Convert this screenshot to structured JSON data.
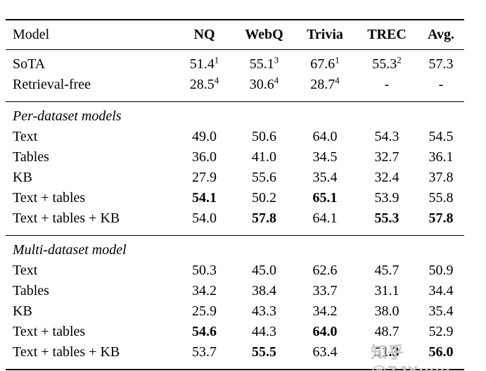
{
  "colors": {
    "text": "#000000",
    "rule": "#000000",
    "watermark": "#c9c9c9",
    "background": "#ffffff"
  },
  "watermark": {
    "text": "知乎 @ZJXuuu"
  },
  "table": {
    "columns": [
      "Model",
      "NQ",
      "WebQ",
      "Trivia",
      "TREC",
      "Avg."
    ],
    "groups": [
      {
        "header": null,
        "rows": [
          {
            "label": "SoTA",
            "cells": [
              {
                "v": "51.4",
                "sup": "1"
              },
              {
                "v": "55.1",
                "sup": "3"
              },
              {
                "v": "67.6",
                "sup": "1"
              },
              {
                "v": "55.3",
                "sup": "2"
              },
              {
                "v": "57.3"
              }
            ]
          },
          {
            "label": "Retrieval-free",
            "cells": [
              {
                "v": "28.5",
                "sup": "4"
              },
              {
                "v": "30.6",
                "sup": "4"
              },
              {
                "v": "28.7",
                "sup": "4"
              },
              {
                "v": "-"
              },
              {
                "v": "-"
              }
            ]
          }
        ]
      },
      {
        "header": "Per-dataset models",
        "rows": [
          {
            "label": "Text",
            "cells": [
              {
                "v": "49.0"
              },
              {
                "v": "50.6"
              },
              {
                "v": "64.0"
              },
              {
                "v": "54.3"
              },
              {
                "v": "54.5"
              }
            ]
          },
          {
            "label": "Tables",
            "cells": [
              {
                "v": "36.0"
              },
              {
                "v": "41.0"
              },
              {
                "v": "34.5"
              },
              {
                "v": "32.7"
              },
              {
                "v": "36.1"
              }
            ]
          },
          {
            "label": "KB",
            "cells": [
              {
                "v": "27.9"
              },
              {
                "v": "55.6"
              },
              {
                "v": "35.4"
              },
              {
                "v": "32.4"
              },
              {
                "v": "37.8"
              }
            ]
          },
          {
            "label": "Text + tables",
            "cells": [
              {
                "v": "54.1",
                "bold": true
              },
              {
                "v": "50.2"
              },
              {
                "v": "65.1",
                "bold": true
              },
              {
                "v": "53.9"
              },
              {
                "v": "55.8"
              }
            ]
          },
          {
            "label": "Text + tables + KB",
            "cells": [
              {
                "v": "54.0"
              },
              {
                "v": "57.8",
                "bold": true
              },
              {
                "v": "64.1"
              },
              {
                "v": "55.3",
                "bold": true
              },
              {
                "v": "57.8",
                "bold": true
              }
            ]
          }
        ]
      },
      {
        "header": "Multi-dataset model",
        "rows": [
          {
            "label": "Text",
            "cells": [
              {
                "v": "50.3"
              },
              {
                "v": "45.0"
              },
              {
                "v": "62.6"
              },
              {
                "v": "45.7"
              },
              {
                "v": "50.9"
              }
            ]
          },
          {
            "label": "Tables",
            "cells": [
              {
                "v": "34.2"
              },
              {
                "v": "38.4"
              },
              {
                "v": "33.7"
              },
              {
                "v": "31.1"
              },
              {
                "v": "34.4"
              }
            ]
          },
          {
            "label": "KB",
            "cells": [
              {
                "v": "25.9"
              },
              {
                "v": "43.3"
              },
              {
                "v": "34.2"
              },
              {
                "v": "38.0"
              },
              {
                "v": "35.4"
              }
            ]
          },
          {
            "label": "Text + tables",
            "cells": [
              {
                "v": "54.6",
                "bold": true
              },
              {
                "v": "44.3"
              },
              {
                "v": "64.0",
                "bold": true
              },
              {
                "v": "48.7"
              },
              {
                "v": "52.9"
              }
            ]
          },
          {
            "label": "Text + tables + KB",
            "cells": [
              {
                "v": "53.7"
              },
              {
                "v": "55.5",
                "bold": true
              },
              {
                "v": "63.4"
              },
              {
                "v": "51.3",
                "bold": true
              },
              {
                "v": "56.0",
                "bold": true
              }
            ]
          }
        ]
      }
    ]
  }
}
